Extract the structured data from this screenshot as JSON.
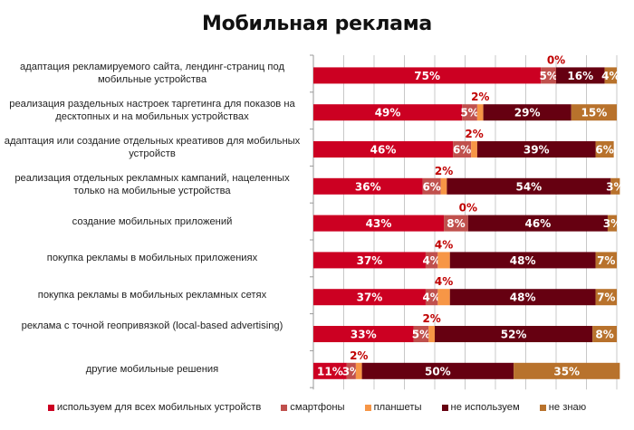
{
  "chart_data": {
    "type": "bar",
    "orientation": "horizontal",
    "stacked": true,
    "title": "Мобильная реклама",
    "xlabel": "",
    "ylabel": "",
    "xlim": [
      0,
      100
    ],
    "grid": true,
    "legend_position": "bottom",
    "categories": [
      "адаптация рекламируемого сайта, лендинг-страниц под мобильные устройства",
      "реализация раздельных настроек таргетинга для показов на десктопных и на мобильных устройствах",
      "адаптация или создание отдельных креативов для мобильных устройств",
      "реализация отдельных рекламных кампаний, нацеленных только на мобильные устройства",
      "создание мобильных приложений",
      "покупка рекламы в мобильных приложениях",
      "покупка рекламы в мобильных рекламных сетях",
      "реклама с точной геопривязкой (local-based advertising)",
      "другие мобильные решения"
    ],
    "series": [
      {
        "name": "используем для всех мобильных устройств",
        "color": "#cc0022",
        "values": [
          75,
          49,
          46,
          36,
          43,
          37,
          37,
          33,
          11
        ]
      },
      {
        "name": "смартфоны",
        "color": "#c0504d",
        "values": [
          5,
          5,
          6,
          6,
          8,
          4,
          4,
          5,
          3
        ]
      },
      {
        "name": "планшеты",
        "color": "#f79646",
        "values": [
          0,
          2,
          2,
          2,
          0,
          4,
          4,
          2,
          2
        ]
      },
      {
        "name": "не используем",
        "color": "#660011",
        "values": [
          16,
          29,
          39,
          54,
          46,
          48,
          48,
          52,
          50
        ]
      },
      {
        "name": "не знаю",
        "color": "#b8722c",
        "values": [
          4,
          15,
          6,
          3,
          3,
          7,
          7,
          8,
          35
        ]
      }
    ],
    "data_labels": [
      [
        "75%",
        "5%",
        "0%",
        "16%",
        "4%"
      ],
      [
        "49%",
        "5%",
        "2%",
        "29%",
        "15%"
      ],
      [
        "46%",
        "6%",
        "2%",
        "39%",
        "6%"
      ],
      [
        "36%",
        "6%",
        "2%",
        "54%",
        "3%"
      ],
      [
        "43%",
        "8%",
        "0%",
        "46%",
        "3%"
      ],
      [
        "37%",
        "4%",
        "4%",
        "48%",
        "7%"
      ],
      [
        "37%",
        "4%",
        "4%",
        "48%",
        "7%"
      ],
      [
        "33%",
        "5%",
        "2%",
        "52%",
        "8%"
      ],
      [
        "11%",
        "3%",
        "2%",
        "50%",
        "35%"
      ]
    ],
    "planshety_label_color": "#c00000"
  }
}
